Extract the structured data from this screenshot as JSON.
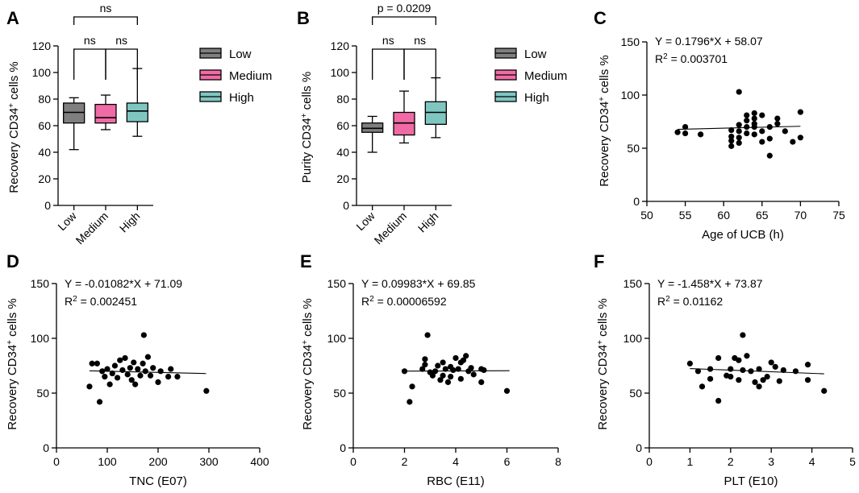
{
  "chart_data": [
    {
      "id": "A",
      "type": "box",
      "panel_label": "A",
      "ylabel_main": "Recovery CD34",
      "ylabel_sup": "+",
      "ylabel_tail": " cells %",
      "ylim": [
        0,
        120
      ],
      "yticks": [
        "0",
        "20",
        "40",
        "60",
        "80",
        "100",
        "120"
      ],
      "categories": [
        "Low",
        "Medium",
        "High"
      ],
      "boxes": [
        {
          "name": "Low",
          "min": 42,
          "q1": 62,
          "median": 70,
          "q3": 77,
          "max": 81,
          "color": "#7f7f7f"
        },
        {
          "name": "Medium",
          "min": 57,
          "q1": 62,
          "median": 66,
          "q3": 76,
          "max": 83,
          "color": "#f06ba5"
        },
        {
          "name": "High",
          "min": 52,
          "q1": 63,
          "median": 71,
          "q3": 77,
          "max": 103,
          "color": "#7fc6c1"
        }
      ],
      "comparisons": [
        {
          "from": 0,
          "to": 1,
          "label": "ns",
          "level": 1
        },
        {
          "from": 1,
          "to": 2,
          "label": "ns",
          "level": 1
        },
        {
          "from": 0,
          "to": 2,
          "label": "ns",
          "level": 2
        }
      ]
    },
    {
      "id": "B",
      "type": "box",
      "panel_label": "B",
      "ylabel_main": "Purity CD34",
      "ylabel_sup": "+",
      "ylabel_tail": " cells %",
      "ylim": [
        0,
        120
      ],
      "yticks": [
        "0",
        "20",
        "40",
        "60",
        "80",
        "100",
        "120"
      ],
      "categories": [
        "Low",
        "Medium",
        "High"
      ],
      "boxes": [
        {
          "name": "Low",
          "min": 40,
          "q1": 55,
          "median": 58,
          "q3": 62,
          "max": 67,
          "color": "#7f7f7f"
        },
        {
          "name": "Medium",
          "min": 47,
          "q1": 53,
          "median": 62,
          "q3": 70,
          "max": 86,
          "color": "#f06ba5"
        },
        {
          "name": "High",
          "min": 51,
          "q1": 61,
          "median": 70,
          "q3": 78,
          "max": 96,
          "color": "#7fc6c1"
        }
      ],
      "comparisons": [
        {
          "from": 0,
          "to": 1,
          "label": "ns",
          "level": 1
        },
        {
          "from": 1,
          "to": 2,
          "label": "ns",
          "level": 1
        },
        {
          "from": 0,
          "to": 2,
          "label": "p = 0.0209",
          "level": 2
        }
      ]
    },
    {
      "id": "C",
      "type": "scatter",
      "panel_label": "C",
      "ylabel_main": "Recovery CD34",
      "ylabel_sup": "+",
      "ylabel_tail": " cells %",
      "xlabel": "Age of UCB (h)",
      "xlim": [
        50,
        75
      ],
      "xticks": [
        "50",
        "55",
        "60",
        "65",
        "70",
        "75"
      ],
      "ylim": [
        0,
        150
      ],
      "yticks": [
        "0",
        "50",
        "100",
        "150"
      ],
      "equation": "Y = 0.1796*X + 58.07",
      "r2_prefix": "R",
      "r2_value": " = 0.003701",
      "slope": 0.1796,
      "intercept": 58.07,
      "fit_x": [
        54,
        70
      ],
      "points": [
        [
          54,
          65
        ],
        [
          55,
          70
        ],
        [
          55,
          64
        ],
        [
          57,
          63
        ],
        [
          61,
          67
        ],
        [
          61,
          61
        ],
        [
          61,
          52
        ],
        [
          61,
          57
        ],
        [
          62,
          103
        ],
        [
          62,
          72
        ],
        [
          62,
          66
        ],
        [
          62,
          60
        ],
        [
          62,
          55
        ],
        [
          63,
          70
        ],
        [
          63,
          76
        ],
        [
          63,
          64
        ],
        [
          63,
          81
        ],
        [
          64,
          73
        ],
        [
          64,
          78
        ],
        [
          64,
          63
        ],
        [
          64,
          83
        ],
        [
          64,
          70
        ],
        [
          65,
          81
        ],
        [
          65,
          66
        ],
        [
          65,
          56
        ],
        [
          66,
          70
        ],
        [
          66,
          43
        ],
        [
          66,
          59
        ],
        [
          67,
          78
        ],
        [
          67,
          73
        ],
        [
          68,
          66
        ],
        [
          69,
          56
        ],
        [
          70,
          84
        ],
        [
          70,
          60
        ]
      ]
    },
    {
      "id": "D",
      "type": "scatter",
      "panel_label": "D",
      "ylabel_main": "Recovery CD34",
      "ylabel_sup": "+",
      "ylabel_tail": " cells %",
      "xlabel": "TNC (E07)",
      "xlim": [
        0,
        400
      ],
      "xticks": [
        "0",
        "100",
        "200",
        "300",
        "400"
      ],
      "ylim": [
        0,
        150
      ],
      "yticks": [
        "0",
        "50",
        "100",
        "150"
      ],
      "equation": "Y = -0.01082*X + 71.09",
      "r2_prefix": "R",
      "r2_value": " = 0.002451",
      "slope": -0.01082,
      "intercept": 71.09,
      "fit_x": [
        65,
        295
      ],
      "points": [
        [
          65,
          56
        ],
        [
          70,
          77
        ],
        [
          80,
          77
        ],
        [
          85,
          42
        ],
        [
          90,
          70
        ],
        [
          95,
          65
        ],
        [
          100,
          72
        ],
        [
          105,
          58
        ],
        [
          110,
          68
        ],
        [
          115,
          75
        ],
        [
          120,
          64
        ],
        [
          125,
          80
        ],
        [
          130,
          71
        ],
        [
          135,
          82
        ],
        [
          140,
          67
        ],
        [
          145,
          73
        ],
        [
          148,
          62
        ],
        [
          152,
          78
        ],
        [
          155,
          58
        ],
        [
          160,
          72
        ],
        [
          165,
          66
        ],
        [
          170,
          77
        ],
        [
          172,
          103
        ],
        [
          175,
          70
        ],
        [
          180,
          83
        ],
        [
          185,
          66
        ],
        [
          190,
          73
        ],
        [
          200,
          60
        ],
        [
          205,
          70
        ],
        [
          220,
          65
        ],
        [
          225,
          72
        ],
        [
          238,
          65
        ],
        [
          295,
          52
        ]
      ]
    },
    {
      "id": "E",
      "type": "scatter",
      "panel_label": "E",
      "ylabel_main": "Recovery CD34",
      "ylabel_sup": "+",
      "ylabel_tail": " cells %",
      "xlabel": "RBC (E11)",
      "xlim": [
        0,
        8
      ],
      "xticks": [
        "0",
        "2",
        "4",
        "6",
        "8"
      ],
      "ylim": [
        0,
        150
      ],
      "yticks": [
        "0",
        "50",
        "100",
        "150"
      ],
      "equation": "Y = 0.09983*X + 69.85",
      "r2_prefix": "R",
      "r2_value": " = 0.00006592",
      "slope": 0.09983,
      "intercept": 69.85,
      "fit_x": [
        2,
        6.1
      ],
      "points": [
        [
          2.0,
          70
        ],
        [
          2.2,
          42
        ],
        [
          2.3,
          56
        ],
        [
          2.7,
          72
        ],
        [
          2.8,
          76
        ],
        [
          2.8,
          81
        ],
        [
          2.9,
          103
        ],
        [
          3.0,
          69
        ],
        [
          3.1,
          66
        ],
        [
          3.2,
          70
        ],
        [
          3.3,
          75
        ],
        [
          3.4,
          62
        ],
        [
          3.5,
          78
        ],
        [
          3.5,
          66
        ],
        [
          3.6,
          72
        ],
        [
          3.7,
          60
        ],
        [
          3.8,
          74
        ],
        [
          3.8,
          65
        ],
        [
          3.9,
          71
        ],
        [
          4.0,
          82
        ],
        [
          4.1,
          72
        ],
        [
          4.2,
          63
        ],
        [
          4.2,
          78
        ],
        [
          4.3,
          80
        ],
        [
          4.4,
          84
        ],
        [
          4.5,
          70
        ],
        [
          4.6,
          73
        ],
        [
          4.7,
          67
        ],
        [
          5.0,
          72
        ],
        [
          5.0,
          60
        ],
        [
          5.1,
          71
        ],
        [
          6.0,
          52
        ]
      ]
    },
    {
      "id": "F",
      "type": "scatter",
      "panel_label": "F",
      "ylabel_main": "Recovery CD34",
      "ylabel_sup": "+",
      "ylabel_tail": " cells %",
      "xlabel": "PLT (E10)",
      "xlim": [
        0,
        5
      ],
      "xticks": [
        "0",
        "1",
        "2",
        "3",
        "4",
        "5"
      ],
      "ylim": [
        0,
        150
      ],
      "yticks": [
        "0",
        "50",
        "100",
        "150"
      ],
      "equation": "Y = -1.458*X + 73.87",
      "r2_prefix": "R",
      "r2_value": " = 0.01162",
      "slope": -1.458,
      "intercept": 73.87,
      "fit_x": [
        1,
        4.3
      ],
      "points": [
        [
          1.0,
          77
        ],
        [
          1.2,
          70
        ],
        [
          1.3,
          56
        ],
        [
          1.5,
          63
        ],
        [
          1.5,
          72
        ],
        [
          1.7,
          82
        ],
        [
          1.7,
          43
        ],
        [
          1.9,
          66
        ],
        [
          2.0,
          72
        ],
        [
          2.0,
          65
        ],
        [
          2.1,
          82
        ],
        [
          2.2,
          80
        ],
        [
          2.2,
          62
        ],
        [
          2.3,
          103
        ],
        [
          2.3,
          71
        ],
        [
          2.4,
          84
        ],
        [
          2.5,
          70
        ],
        [
          2.6,
          60
        ],
        [
          2.7,
          72
        ],
        [
          2.7,
          56
        ],
        [
          2.8,
          62
        ],
        [
          2.9,
          65
        ],
        [
          3.0,
          78
        ],
        [
          3.1,
          74
        ],
        [
          3.2,
          61
        ],
        [
          3.3,
          71
        ],
        [
          3.6,
          70
        ],
        [
          3.9,
          76
        ],
        [
          3.9,
          62
        ],
        [
          4.3,
          52
        ]
      ]
    }
  ]
}
